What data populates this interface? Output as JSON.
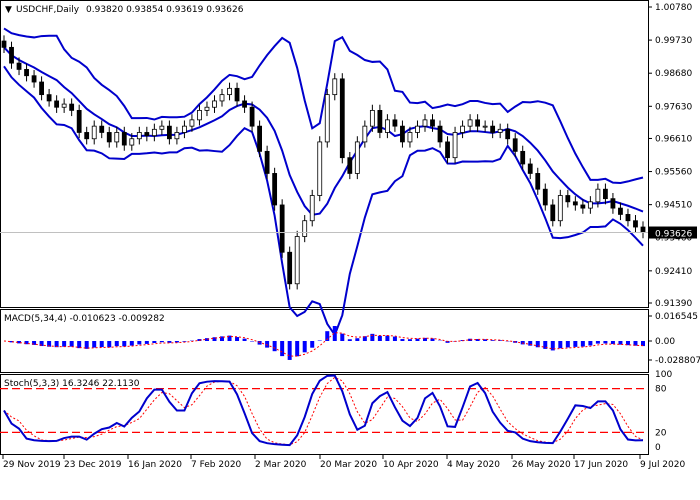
{
  "chart_data": [
    {
      "type": "candlestick",
      "title": "USDCHF,Daily",
      "ohlc_readout": [
        "0.93820",
        "0.93854",
        "0.93619",
        "0.93626"
      ],
      "current_price": "0.93626",
      "ylim": [
        0.9139,
        1.0078
      ],
      "y_ticks": [
        "1.00780",
        "0.99730",
        "0.98680",
        "0.97630",
        "0.96610",
        "0.95560",
        "0.94510",
        "0.93460",
        "0.92410",
        "0.91390"
      ],
      "x_ticks": [
        "29 Nov 2019",
        "23 Dec 2019",
        "16 Jan 2020",
        "7 Feb 2020",
        "2 Mar 2020",
        "20 Mar 2020",
        "10 Apr 2020",
        "4 May 2020",
        "26 May 2020",
        "17 Jun 2020",
        "9 Jul 2020"
      ],
      "closes": [
        0.995,
        0.99,
        0.988,
        0.986,
        0.984,
        0.98,
        0.978,
        0.976,
        0.977,
        0.975,
        0.968,
        0.966,
        0.97,
        0.968,
        0.965,
        0.968,
        0.964,
        0.966,
        0.968,
        0.967,
        0.969,
        0.97,
        0.966,
        0.968,
        0.97,
        0.972,
        0.975,
        0.976,
        0.978,
        0.98,
        0.982,
        0.978,
        0.976,
        0.97,
        0.962,
        0.955,
        0.945,
        0.93,
        0.92,
        0.935,
        0.94,
        0.948,
        0.965,
        0.98,
        0.985,
        0.96,
        0.955,
        0.965,
        0.97,
        0.975,
        0.968,
        0.972,
        0.97,
        0.965,
        0.968,
        0.97,
        0.972,
        0.97,
        0.965,
        0.96,
        0.968,
        0.97,
        0.972,
        0.97,
        0.97,
        0.968,
        0.969,
        0.966,
        0.962,
        0.958,
        0.955,
        0.95,
        0.945,
        0.94,
        0.948,
        0.946,
        0.945,
        0.944,
        0.946,
        0.95,
        0.947,
        0.944,
        0.942,
        0.94,
        0.938,
        0.93626
      ],
      "overlay": "Bollinger Bands",
      "colors": {
        "bands": "#0000cc",
        "candles": "#000000",
        "price_line": "#c0c0c0"
      }
    },
    {
      "type": "bar",
      "title": "MACD(5,34,4) -0.010623 -0.009282",
      "y_ticks": [
        "0.016545",
        "0.00",
        "-0.028807"
      ],
      "ylim": [
        -0.028807,
        0.016545
      ],
      "colors": {
        "histogram": "#0000ff",
        "signal": "#ff0000"
      }
    },
    {
      "type": "line",
      "title": "Stoch(5,3,3) 16.3246 22.1130",
      "y_ticks": [
        "100",
        "80",
        "20",
        "0"
      ],
      "ylim": [
        0,
        100
      ],
      "levels": [
        80,
        20
      ],
      "colors": {
        "main": "#0000cc",
        "signal": "#ff0000",
        "levels": "#ff0000"
      }
    }
  ]
}
